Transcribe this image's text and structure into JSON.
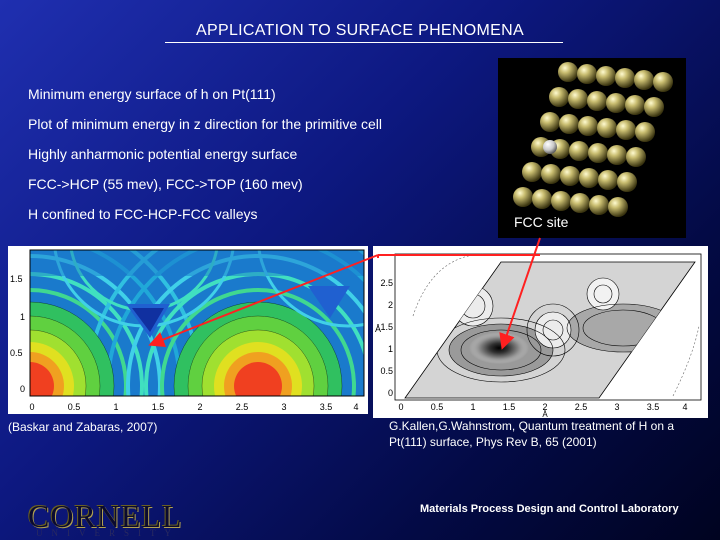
{
  "slide": {
    "title": "APPLICATION TO SURFACE PHENOMENA",
    "bullets": [
      "Minimum energy surface of h on Pt(111)",
      "Plot of minimum energy in z direction for the primitive cell",
      "Highly anharmonic potential energy surface",
      "FCC->HCP (55 mev), FCC->TOP (160 mev)",
      "H confined to FCC-HCP-FCC valleys"
    ],
    "fcc_label": "FCC site",
    "left_plot": {
      "x_ticks": [
        "0",
        "0.5",
        "1",
        "1.5",
        "2",
        "2.5",
        "3",
        "3.5",
        "4"
      ],
      "y_ticks": [
        "1.5",
        "1",
        "0.5",
        "0"
      ],
      "caption": "(Baskar and Zabaras, 2007)"
    },
    "right_plot": {
      "x_ticks": [
        "0",
        "0.5",
        "1",
        "1.5",
        "2",
        "2.5",
        "3",
        "3.5",
        "4"
      ],
      "y_ticks": [
        "2.5",
        "2",
        "1.5",
        "1",
        "0.5",
        "0"
      ],
      "x_unit": "Å",
      "y_unit": "Å",
      "caption": "G.Kallen,G.Wahnstrom, Quantum treatment of H on a Pt(111) surface, Phys Rev B, 65 (2001)"
    },
    "footer": {
      "logo": "CORNELL",
      "logo_sub": "UNIVERSITY",
      "lab": "Materials Process Design and Control Laboratory"
    }
  }
}
